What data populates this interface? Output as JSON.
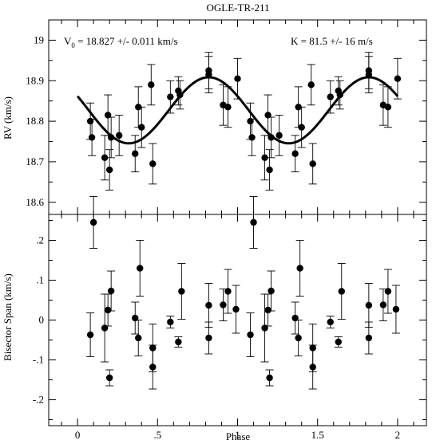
{
  "chart_data": [
    {
      "type": "scatter",
      "title": "OGLE-TR-211",
      "ylabel": "RV (km/s)",
      "xlabel": "",
      "xlim": [
        -0.18,
        2.18
      ],
      "ylim": [
        18.57,
        19.05
      ],
      "yticks": [
        18.6,
        18.7,
        18.8,
        18.9,
        19
      ],
      "ytick_labels": [
        "18.6",
        "18.7",
        "18.8",
        "18.9",
        "19"
      ],
      "grid": false,
      "annotations": {
        "v0": {
          "sym": "V",
          "sub": "0",
          "text": " = 18.827 +/- 0.011 km/s"
        },
        "k": "K = 81.5 +/- 16 m/s"
      },
      "model_curve": {
        "v0": 18.827,
        "k": 0.0815,
        "period_phase": 1.0,
        "max_phase": 0.82
      },
      "series": [
        {
          "points": [
            {
              "x": 0.08,
              "y": 18.8,
              "err": 0.045
            },
            {
              "x": 0.09,
              "y": 18.76,
              "err": 0.045
            },
            {
              "x": 0.17,
              "y": 18.71,
              "err": 0.055
            },
            {
              "x": 0.19,
              "y": 18.815,
              "err": 0.05
            },
            {
              "x": 0.2,
              "y": 18.68,
              "err": 0.05
            },
            {
              "x": 0.21,
              "y": 18.76,
              "err": 0.05
            },
            {
              "x": 0.26,
              "y": 18.765,
              "err": 0.05
            },
            {
              "x": 0.36,
              "y": 18.72,
              "err": 0.045
            },
            {
              "x": 0.38,
              "y": 18.835,
              "err": 0.05
            },
            {
              "x": 0.4,
              "y": 18.785,
              "err": 0.05
            },
            {
              "x": 0.46,
              "y": 18.89,
              "err": 0.05
            },
            {
              "x": 0.47,
              "y": 18.695,
              "err": 0.05
            },
            {
              "x": 0.58,
              "y": 18.86,
              "err": 0.04
            },
            {
              "x": 0.63,
              "y": 18.875,
              "err": 0.035
            },
            {
              "x": 0.64,
              "y": 18.865,
              "err": 0.035
            },
            {
              "x": 0.82,
              "y": 18.925,
              "err": 0.045
            },
            {
              "x": 0.82,
              "y": 18.915,
              "err": 0.045
            },
            {
              "x": 0.91,
              "y": 18.84,
              "err": 0.05
            },
            {
              "x": 0.94,
              "y": 18.835,
              "err": 0.05
            },
            {
              "x": 1.0,
              "y": 18.905,
              "err": 0.05
            },
            {
              "x": 1.08,
              "y": 18.8,
              "err": 0.045
            },
            {
              "x": 1.09,
              "y": 18.76,
              "err": 0.045
            },
            {
              "x": 1.17,
              "y": 18.71,
              "err": 0.055
            },
            {
              "x": 1.19,
              "y": 18.815,
              "err": 0.05
            },
            {
              "x": 1.2,
              "y": 18.68,
              "err": 0.05
            },
            {
              "x": 1.21,
              "y": 18.76,
              "err": 0.05
            },
            {
              "x": 1.26,
              "y": 18.765,
              "err": 0.05
            },
            {
              "x": 1.36,
              "y": 18.72,
              "err": 0.045
            },
            {
              "x": 1.38,
              "y": 18.835,
              "err": 0.05
            },
            {
              "x": 1.4,
              "y": 18.785,
              "err": 0.05
            },
            {
              "x": 1.46,
              "y": 18.89,
              "err": 0.05
            },
            {
              "x": 1.47,
              "y": 18.695,
              "err": 0.05
            },
            {
              "x": 1.58,
              "y": 18.86,
              "err": 0.04
            },
            {
              "x": 1.63,
              "y": 18.875,
              "err": 0.035
            },
            {
              "x": 1.64,
              "y": 18.865,
              "err": 0.035
            },
            {
              "x": 1.82,
              "y": 18.925,
              "err": 0.045
            },
            {
              "x": 1.82,
              "y": 18.915,
              "err": 0.045
            },
            {
              "x": 1.91,
              "y": 18.84,
              "err": 0.05
            },
            {
              "x": 1.94,
              "y": 18.835,
              "err": 0.05
            },
            {
              "x": 2.0,
              "y": 18.905,
              "err": 0.05
            }
          ]
        }
      ]
    },
    {
      "type": "scatter",
      "title": "",
      "ylabel": "Bisector Span (km/s)",
      "xlabel": "Phase",
      "xlim": [
        -0.18,
        2.18
      ],
      "ylim": [
        -0.265,
        0.265
      ],
      "yticks": [
        -0.2,
        -0.1,
        0,
        0.1,
        0.2
      ],
      "ytick_labels": [
        "-.2",
        "-.1",
        "0",
        ".1",
        ".2"
      ],
      "xticks": [
        0,
        0.5,
        1,
        1.5,
        2
      ],
      "xtick_labels": [
        "0",
        ".5",
        "1",
        "1.5",
        "2"
      ],
      "grid": false,
      "series": [
        {
          "points": [
            {
              "x": 0.08,
              "y": -0.037,
              "err": 0.055
            },
            {
              "x": 0.1,
              "y": 0.245,
              "err": 0.065
            },
            {
              "x": 0.17,
              "y": -0.02,
              "err": 0.085
            },
            {
              "x": 0.19,
              "y": 0.025,
              "err": 0.04
            },
            {
              "x": 0.2,
              "y": -0.145,
              "err": 0.02
            },
            {
              "x": 0.21,
              "y": 0.073,
              "err": 0.05
            },
            {
              "x": 0.36,
              "y": 0.005,
              "err": 0.04
            },
            {
              "x": 0.38,
              "y": -0.045,
              "err": 0.045
            },
            {
              "x": 0.39,
              "y": 0.13,
              "err": 0.07
            },
            {
              "x": 0.47,
              "y": -0.07,
              "err": 0.06
            },
            {
              "x": 0.47,
              "y": -0.118,
              "err": 0.055
            },
            {
              "x": 0.58,
              "y": -0.005,
              "err": 0.015
            },
            {
              "x": 0.63,
              "y": -0.055,
              "err": 0.013
            },
            {
              "x": 0.65,
              "y": 0.072,
              "err": 0.07
            },
            {
              "x": 0.82,
              "y": 0.037,
              "err": 0.055
            },
            {
              "x": 0.82,
              "y": -0.045,
              "err": 0.04
            },
            {
              "x": 0.91,
              "y": 0.038,
              "err": 0.04
            },
            {
              "x": 0.94,
              "y": 0.072,
              "err": 0.055
            },
            {
              "x": 0.99,
              "y": 0.027,
              "err": 0.06
            },
            {
              "x": 1.08,
              "y": -0.037,
              "err": 0.055
            },
            {
              "x": 1.1,
              "y": 0.245,
              "err": 0.065
            },
            {
              "x": 1.17,
              "y": -0.02,
              "err": 0.085
            },
            {
              "x": 1.19,
              "y": 0.025,
              "err": 0.04
            },
            {
              "x": 1.2,
              "y": -0.145,
              "err": 0.02
            },
            {
              "x": 1.21,
              "y": 0.073,
              "err": 0.05
            },
            {
              "x": 1.36,
              "y": 0.005,
              "err": 0.04
            },
            {
              "x": 1.38,
              "y": -0.045,
              "err": 0.045
            },
            {
              "x": 1.39,
              "y": 0.13,
              "err": 0.07
            },
            {
              "x": 1.47,
              "y": -0.07,
              "err": 0.06
            },
            {
              "x": 1.47,
              "y": -0.118,
              "err": 0.055
            },
            {
              "x": 1.58,
              "y": -0.005,
              "err": 0.015
            },
            {
              "x": 1.63,
              "y": -0.055,
              "err": 0.013
            },
            {
              "x": 1.65,
              "y": 0.072,
              "err": 0.07
            },
            {
              "x": 1.82,
              "y": 0.037,
              "err": 0.055
            },
            {
              "x": 1.82,
              "y": -0.045,
              "err": 0.04
            },
            {
              "x": 1.91,
              "y": 0.038,
              "err": 0.04
            },
            {
              "x": 1.94,
              "y": 0.072,
              "err": 0.055
            },
            {
              "x": 1.99,
              "y": 0.027,
              "err": 0.06
            }
          ]
        }
      ]
    }
  ]
}
